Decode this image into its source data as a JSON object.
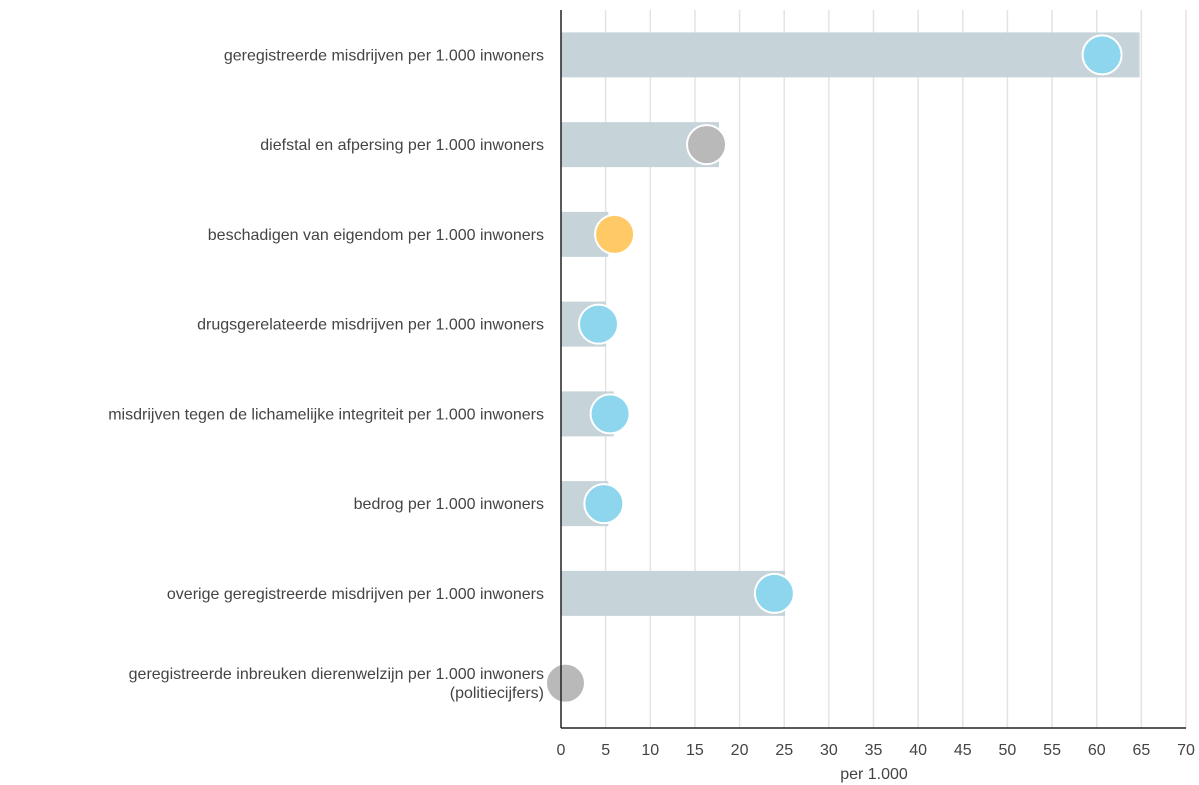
{
  "chart_data": {
    "type": "bar",
    "orientation": "horizontal",
    "categories": [
      [
        "geregistreerde misdrijven per 1.000 inwoners"
      ],
      [
        "diefstal en afpersing per 1.000 inwoners"
      ],
      [
        "beschadigen van eigendom per 1.000 inwoners"
      ],
      [
        "drugsgerelateerde misdrijven per 1.000 inwoners"
      ],
      [
        "misdrijven tegen de lichamelijke integriteit per 1.000 inwoners"
      ],
      [
        "bedrog per 1.000 inwoners"
      ],
      [
        "overige geregistreerde misdrijven per 1.000 inwoners"
      ],
      [
        "geregistreerde inbreuken dierenwelzijn per 1.000 inwoners",
        "(politiecijfers)"
      ]
    ],
    "bar_values": [
      64.8,
      17.7,
      5.3,
      5.0,
      5.9,
      5.3,
      25.1,
      0
    ],
    "point_values": [
      60.6,
      16.3,
      6.0,
      4.2,
      5.5,
      4.8,
      23.9,
      0.5
    ],
    "point_colors": [
      "#8dd6ee",
      "#b9b9b9",
      "#ffc966",
      "#8dd6ee",
      "#8dd6ee",
      "#8dd6ee",
      "#8dd6ee",
      "#b9b9b9"
    ],
    "bar_color": "#c6d4da",
    "xlim": [
      0,
      70
    ],
    "xticks": [
      0,
      5,
      10,
      15,
      20,
      25,
      30,
      35,
      40,
      45,
      50,
      55,
      60,
      65,
      70
    ],
    "xlabel": "per 1.000",
    "grid": true
  }
}
